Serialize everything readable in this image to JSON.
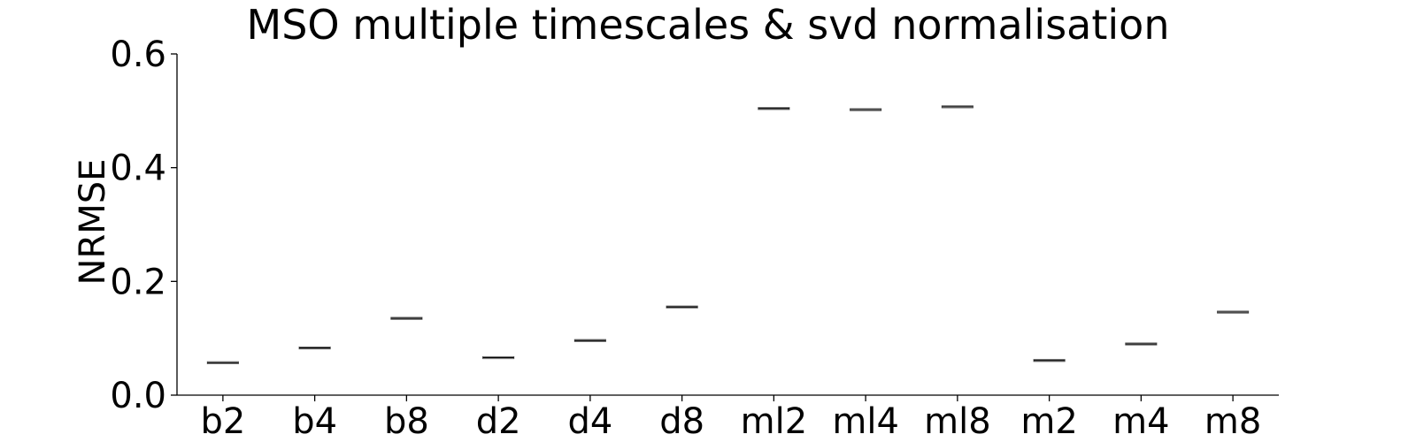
{
  "chart_data": {
    "type": "box",
    "title": "MSO multiple timescales & svd normalisation",
    "xlabel": "",
    "ylabel": "NRMSE",
    "ylim": [
      0,
      0.6
    ],
    "yticks": [
      0.0,
      0.2,
      0.4,
      0.6
    ],
    "ytick_labels": [
      "0.0",
      "0.2",
      "0.4",
      "0.6"
    ],
    "grid": false,
    "legend": "none",
    "categories": [
      "b2",
      "b4",
      "b8",
      "d2",
      "d4",
      "d8",
      "ml2",
      "ml4",
      "ml8",
      "m2",
      "m4",
      "m8"
    ],
    "values": [
      0.057,
      0.083,
      0.135,
      0.066,
      0.096,
      0.155,
      0.504,
      0.502,
      0.507,
      0.061,
      0.09,
      0.146
    ],
    "colors": {
      "axis": "#000000",
      "median": "#000000",
      "box": "#555555"
    }
  }
}
